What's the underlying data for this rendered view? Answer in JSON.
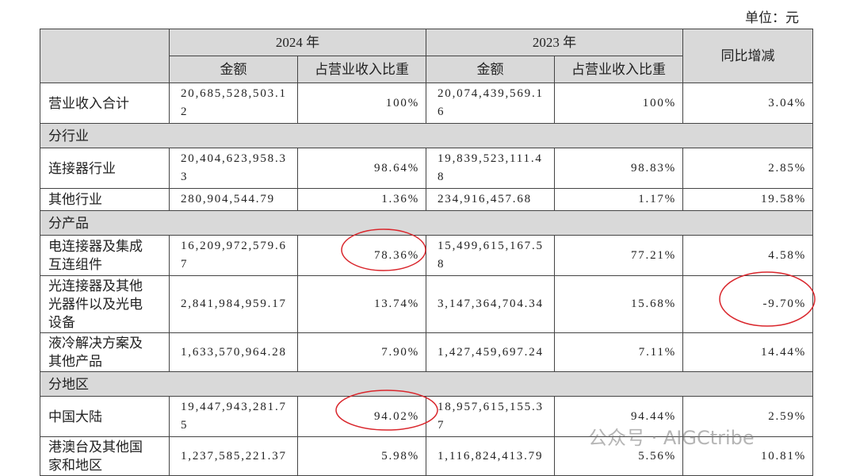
{
  "unit": "单位：元",
  "table": {
    "headers": {
      "year_2024": "2024 年",
      "year_2023": "2023 年",
      "yoy": "同比增减",
      "amount": "金额",
      "share": "占营业收入比重"
    },
    "rows": [
      {
        "label": "营业收入合计",
        "amount_2024": "20,685,528,503.12",
        "share_2024": "100%",
        "amount_2023": "20,074,439,569.16",
        "share_2023": "100%",
        "yoy": "3.04%"
      },
      {
        "section": "分行业"
      },
      {
        "label": "连接器行业",
        "amount_2024": "20,404,623,958.33",
        "share_2024": "98.64%",
        "amount_2023": "19,839,523,111.48",
        "share_2023": "98.83%",
        "yoy": "2.85%"
      },
      {
        "label": "其他行业",
        "amount_2024": "280,904,544.79",
        "share_2024": "1.36%",
        "amount_2023": "234,916,457.68",
        "share_2023": "1.17%",
        "yoy": "19.58%"
      },
      {
        "section": "分产品"
      },
      {
        "label": "电连接器及集成互连组件",
        "amount_2024": "16,209,972,579.67",
        "share_2024": "78.36%",
        "amount_2023": "15,499,615,167.58",
        "share_2023": "77.21%",
        "yoy": "4.58%"
      },
      {
        "label": "光连接器及其他光器件以及光电设备",
        "amount_2024": "2,841,984,959.17",
        "share_2024": "13.74%",
        "amount_2023": "3,147,364,704.34",
        "share_2023": "15.68%",
        "yoy": "-9.70%"
      },
      {
        "label": "液冷解决方案及其他产品",
        "amount_2024": "1,633,570,964.28",
        "share_2024": "7.90%",
        "amount_2023": "1,427,459,697.24",
        "share_2023": "7.11%",
        "yoy": "14.44%"
      },
      {
        "section": "分地区"
      },
      {
        "label": "中国大陆",
        "amount_2024": "19,447,943,281.75",
        "share_2024": "94.02%",
        "amount_2023": "18,957,615,155.37",
        "share_2023": "94.44%",
        "yoy": "2.59%"
      },
      {
        "label": "港澳台及其他国家和地区",
        "amount_2024": "1,237,585,221.37",
        "share_2024": "5.98%",
        "amount_2023": "1,116,824,413.79",
        "share_2023": "5.56%",
        "yoy": "10.81%"
      }
    ]
  },
  "watermark": "公众号 · AIGCtribe"
}
